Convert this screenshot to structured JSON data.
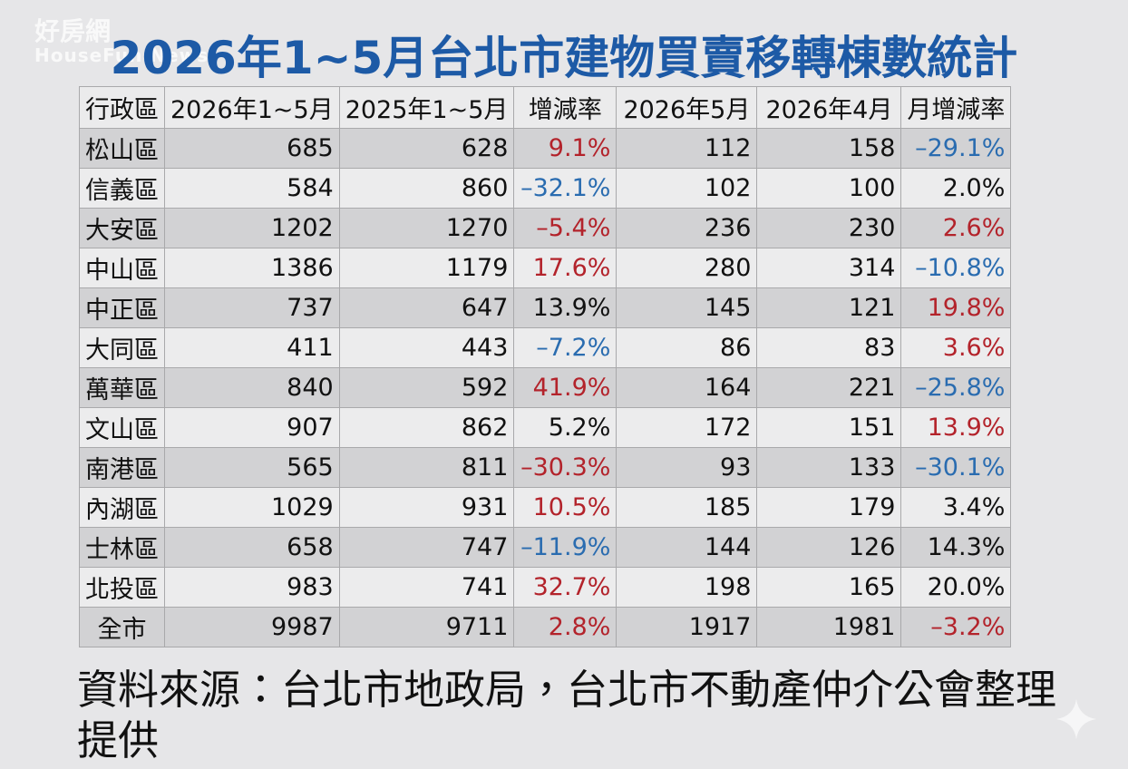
{
  "watermark": {
    "name": "好房網",
    "sub": "HouseFun News"
  },
  "header": {
    "title": "2026年1~5月台北市建物買賣移轉棟數統計"
  },
  "table": {
    "columns": [
      "行政區",
      "2026年1~5月",
      "2025年1~5月",
      "增減率",
      "2026年5月",
      "2026年4月",
      "月增減率"
    ],
    "rows": [
      [
        "松山區",
        "685",
        "628",
        "9.1%",
        "112",
        "158",
        "–29.1%"
      ],
      [
        "信義區",
        "584",
        "860",
        "–32.1%",
        "102",
        "100",
        "2.0%"
      ],
      [
        "大安區",
        "1202",
        "1270",
        "–5.4%",
        "236",
        "230",
        "2.6%"
      ],
      [
        "中山區",
        "1386",
        "1179",
        "17.6%",
        "280",
        "314",
        "–10.8%"
      ],
      [
        "中正區",
        "737",
        "647",
        "13.9%",
        "145",
        "121",
        "19.8%"
      ],
      [
        "大同區",
        "411",
        "443",
        "–7.2%",
        "86",
        "83",
        "3.6%"
      ],
      [
        "萬華區",
        "840",
        "592",
        "41.9%",
        "164",
        "221",
        "–25.8%"
      ],
      [
        "文山區",
        "907",
        "862",
        "5.2%",
        "172",
        "151",
        "13.9%"
      ],
      [
        "南港區",
        "565",
        "811",
        "–30.3%",
        "93",
        "133",
        "–30.1%"
      ],
      [
        "內湖區",
        "1029",
        "931",
        "10.5%",
        "185",
        "179",
        "3.4%"
      ],
      [
        "士林區",
        "658",
        "747",
        "–11.9%",
        "144",
        "126",
        "14.3%"
      ],
      [
        "北投區",
        "983",
        "741",
        "32.7%",
        "198",
        "165",
        "20.0%"
      ],
      [
        "全市",
        "9987",
        "9711",
        "2.8%",
        "1917",
        "1981",
        "–3.2%"
      ]
    ],
    "rate_colors": [
      [
        "#b3232b",
        "#2a6cb0"
      ],
      [
        "#2a6cb0",
        "#111111"
      ],
      [
        "#b3232b",
        "#b3232b"
      ],
      [
        "#b3232b",
        "#2a6cb0"
      ],
      [
        "#111111",
        "#b3232b"
      ],
      [
        "#2a6cb0",
        "#b3232b"
      ],
      [
        "#b3232b",
        "#2a6cb0"
      ],
      [
        "#111111",
        "#b3232b"
      ],
      [
        "#b3232b",
        "#2a6cb0"
      ],
      [
        "#b3232b",
        "#111111"
      ],
      [
        "#2a6cb0",
        "#111111"
      ],
      [
        "#b3232b",
        "#111111"
      ],
      [
        "#b3232b",
        "#b3232b"
      ]
    ]
  },
  "source": "資料來源：台北市地政局，台北市不動產仲介公會整理提供"
}
